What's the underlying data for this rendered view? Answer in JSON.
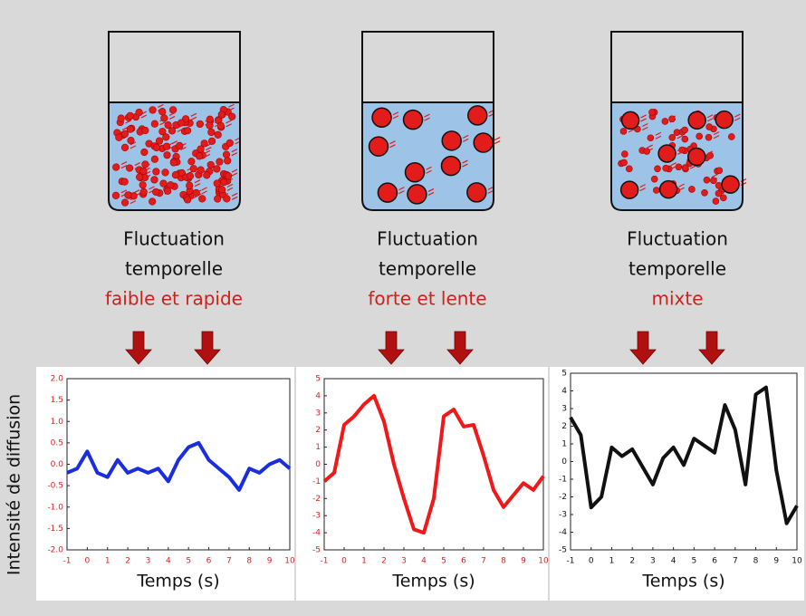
{
  "panels": [
    {
      "line1": "Fluctuation",
      "line2": "temporelle",
      "line3": "faible et rapide"
    },
    {
      "line1": "Fluctuation",
      "line2": "temporelle",
      "line3": "forte et lente"
    },
    {
      "line1": "Fluctuation",
      "line2": "temporelle",
      "line3": "mixte"
    }
  ],
  "y_axis_label": "Intensité de diffusion",
  "chart_data": [
    {
      "type": "line",
      "x_label": "Temps (s)",
      "color": "#1a2ee0",
      "tick_color": "#e02020",
      "x": [
        -1,
        -0.5,
        0,
        0.5,
        1,
        1.5,
        2,
        2.5,
        3,
        3.5,
        4,
        4.5,
        5,
        5.5,
        6,
        6.5,
        7,
        7.5,
        8,
        8.5,
        9,
        9.5,
        10
      ],
      "values": [
        -0.2,
        -0.1,
        0.3,
        -0.2,
        -0.3,
        0.1,
        -0.2,
        -0.1,
        -0.2,
        -0.1,
        -0.4,
        0.1,
        0.4,
        0.5,
        0.1,
        -0.1,
        -0.3,
        -0.6,
        -0.1,
        -0.2,
        0.0,
        0.1,
        -0.1
      ],
      "xlim": [
        -1,
        10
      ],
      "xticks": [
        -1,
        0,
        1,
        2,
        3,
        4,
        5,
        6,
        7,
        8,
        9,
        10
      ],
      "ylim": [
        -2,
        2
      ],
      "yticks": [
        {
          "value": -2,
          "label": "-2.0"
        },
        -1.5,
        {
          "value": -1,
          "label": "-1.0"
        },
        -0.5,
        {
          "value": 0,
          "label": "0.0"
        },
        0.5,
        {
          "value": 1,
          "label": "1.0"
        },
        1.5,
        {
          "value": 2,
          "label": "2.0"
        }
      ]
    },
    {
      "type": "line",
      "x_label": "Temps (s)",
      "color": "#f01818",
      "tick_color": "#e02020",
      "x": [
        -1,
        -0.5,
        0,
        0.5,
        1,
        1.5,
        2,
        2.5,
        3,
        3.5,
        4,
        4.5,
        5,
        5.5,
        6,
        6.5,
        7,
        7.5,
        8,
        8.5,
        9,
        9.5,
        10
      ],
      "values": [
        -1,
        -0.5,
        2.3,
        2.8,
        3.5,
        4.0,
        2.5,
        0,
        -2,
        -3.8,
        -4,
        -2,
        2.8,
        3.2,
        2.2,
        2.3,
        0.5,
        -1.5,
        -2.5,
        -1.8,
        -1.1,
        -1.5,
        -0.7
      ],
      "xlim": [
        -1,
        10
      ],
      "xticks": [
        -1,
        0,
        1,
        2,
        3,
        4,
        5,
        6,
        7,
        8,
        9,
        10
      ],
      "ylim": [
        -5,
        5
      ],
      "yticks": [
        -5,
        -4,
        -3,
        -2,
        -1,
        0,
        1,
        2,
        3,
        4,
        5
      ]
    },
    {
      "type": "line",
      "x_label": "Temps (s)",
      "color": "#111111",
      "tick_color": "#111111",
      "x": [
        -1,
        -0.5,
        0,
        0.5,
        1,
        1.5,
        2,
        2.5,
        3,
        3.5,
        4,
        4.5,
        5,
        5.5,
        6,
        6.5,
        7,
        7.5,
        8,
        8.5,
        9,
        9.5,
        10
      ],
      "values": [
        2.5,
        1.5,
        -2.6,
        -2,
        0.8,
        0.3,
        0.7,
        -0.3,
        -1.3,
        0.2,
        0.8,
        -0.2,
        1.3,
        0.9,
        0.5,
        3.2,
        1.8,
        -1.3,
        3.8,
        4.2,
        -0.5,
        -3.5,
        -2.5
      ],
      "xlim": [
        -1,
        10
      ],
      "xticks": [
        -1,
        0,
        1,
        2,
        3,
        4,
        5,
        6,
        7,
        8,
        9,
        10
      ],
      "ylim": [
        -5,
        5
      ],
      "yticks": [
        -5,
        -4,
        -3,
        -2,
        -1,
        0,
        1,
        2,
        3,
        4,
        5
      ]
    }
  ]
}
